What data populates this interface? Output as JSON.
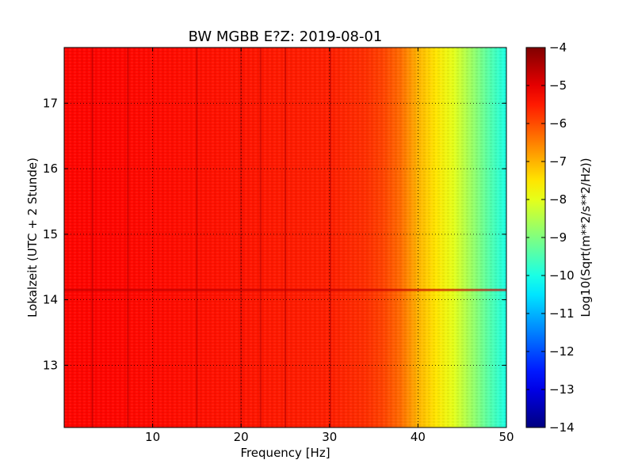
{
  "chart_data": {
    "type": "heatmap",
    "title": "BW MGBB E?Z: 2019-08-01",
    "xlabel": "Frequency [Hz]",
    "ylabel": "Lokalzeit (UTC + 2 Stunde)",
    "xlim": [
      0,
      50
    ],
    "ylim": [
      17.85,
      12.05
    ],
    "x_ticks": [
      10,
      20,
      30,
      40,
      50
    ],
    "x_tick_labels": [
      "10",
      "20",
      "30",
      "40",
      "50"
    ],
    "y_ticks": [
      13,
      14,
      15,
      16,
      17
    ],
    "y_tick_labels": [
      "13",
      "14",
      "15",
      "16",
      "17"
    ],
    "grid": true,
    "colormap": "jet",
    "colorbar": {
      "label": "Log10(Sqrt(m**2/s**2/Hz))",
      "range": [
        -14,
        -4
      ],
      "ticks": [
        -4,
        -5,
        -6,
        -7,
        -8,
        -9,
        -10,
        -11,
        -12,
        -13,
        -14
      ],
      "tick_labels": [
        "−4",
        "−5",
        "−6",
        "−7",
        "−8",
        "−9",
        "−10",
        "−11",
        "−12",
        "−13",
        "−14"
      ]
    },
    "profile_by_frequency": {
      "frequency_hz": [
        0,
        5,
        10,
        15,
        20,
        25,
        30,
        34,
        36,
        38,
        40,
        42,
        44,
        46,
        48,
        50
      ],
      "log_value": [
        -5.3,
        -5.3,
        -5.35,
        -5.4,
        -5.45,
        -5.5,
        -5.55,
        -5.7,
        -5.9,
        -6.3,
        -7.0,
        -7.5,
        -8.0,
        -8.7,
        -9.4,
        -10.0
      ]
    },
    "vertical_lines_hz": [
      3.2,
      7.2,
      15.0,
      20.0,
      22.2,
      25.0,
      30.1
    ],
    "horizontal_band_hours": [
      14.15
    ]
  }
}
